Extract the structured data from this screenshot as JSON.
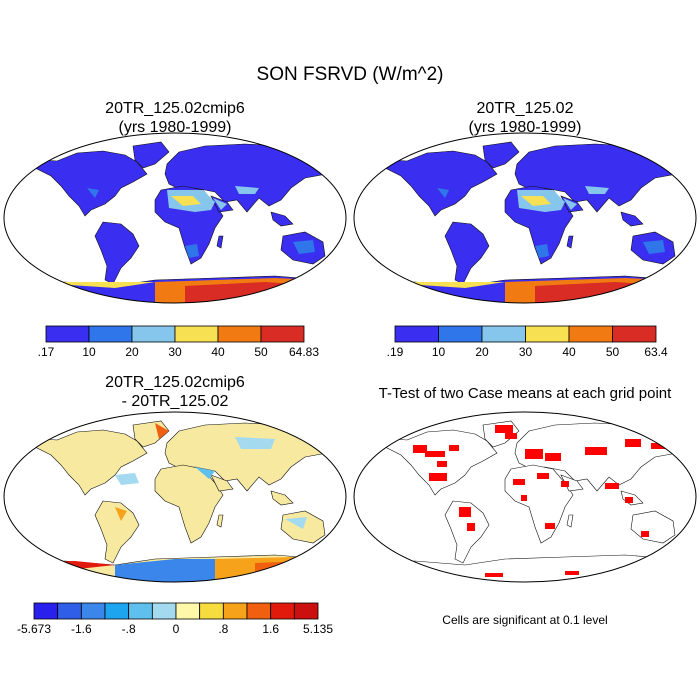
{
  "title": "SON FSRVD (W/m^2)",
  "panels": [
    {
      "title_line1": "20TR_125.02cmip6",
      "title_line2": "(yrs 1980-1999)"
    },
    {
      "title_line1": "20TR_125.02",
      "title_line2": "(yrs 1980-1999)"
    },
    {
      "title_line1": "20TR_125.02cmip6",
      "title_line2": "- 20TR_125.02"
    },
    {
      "title_line1": "T-Test of two Case means at each grid point",
      "title_line2": ""
    }
  ],
  "colorbars": [
    {
      "labels": [
        ".17",
        "10",
        "20",
        "30",
        "40",
        "50",
        "64.83"
      ],
      "colors": [
        "#3a2ef0",
        "#2f76ea",
        "#86c6ec",
        "#f7e051",
        "#f27a12",
        "#d82c24"
      ]
    },
    {
      "labels": [
        ".19",
        "10",
        "20",
        "30",
        "40",
        "50",
        "63.4"
      ],
      "colors": [
        "#3a2ef0",
        "#2f76ea",
        "#86c6ec",
        "#f7e051",
        "#f27a12",
        "#d82c24"
      ]
    },
    {
      "labels": [
        "-5.673",
        "-1.6",
        "-.8",
        "0",
        ".8",
        "1.6",
        "5.135"
      ],
      "colors": [
        "#2a20ee",
        "#2f5ee8",
        "#3a86ea",
        "#1ea5f0",
        "#5fc0ee",
        "#a3daf0",
        "#fff8a8",
        "#f7dc40",
        "#f6a21a",
        "#f06010",
        "#e21a0c",
        "#cc1010"
      ]
    }
  ],
  "significance_note": "Cells are significant at 0.1 level",
  "colors": {
    "land_low": "#3a2ef0",
    "sig_cells": "#ff0000",
    "diff_land": "#f7e9a0"
  }
}
